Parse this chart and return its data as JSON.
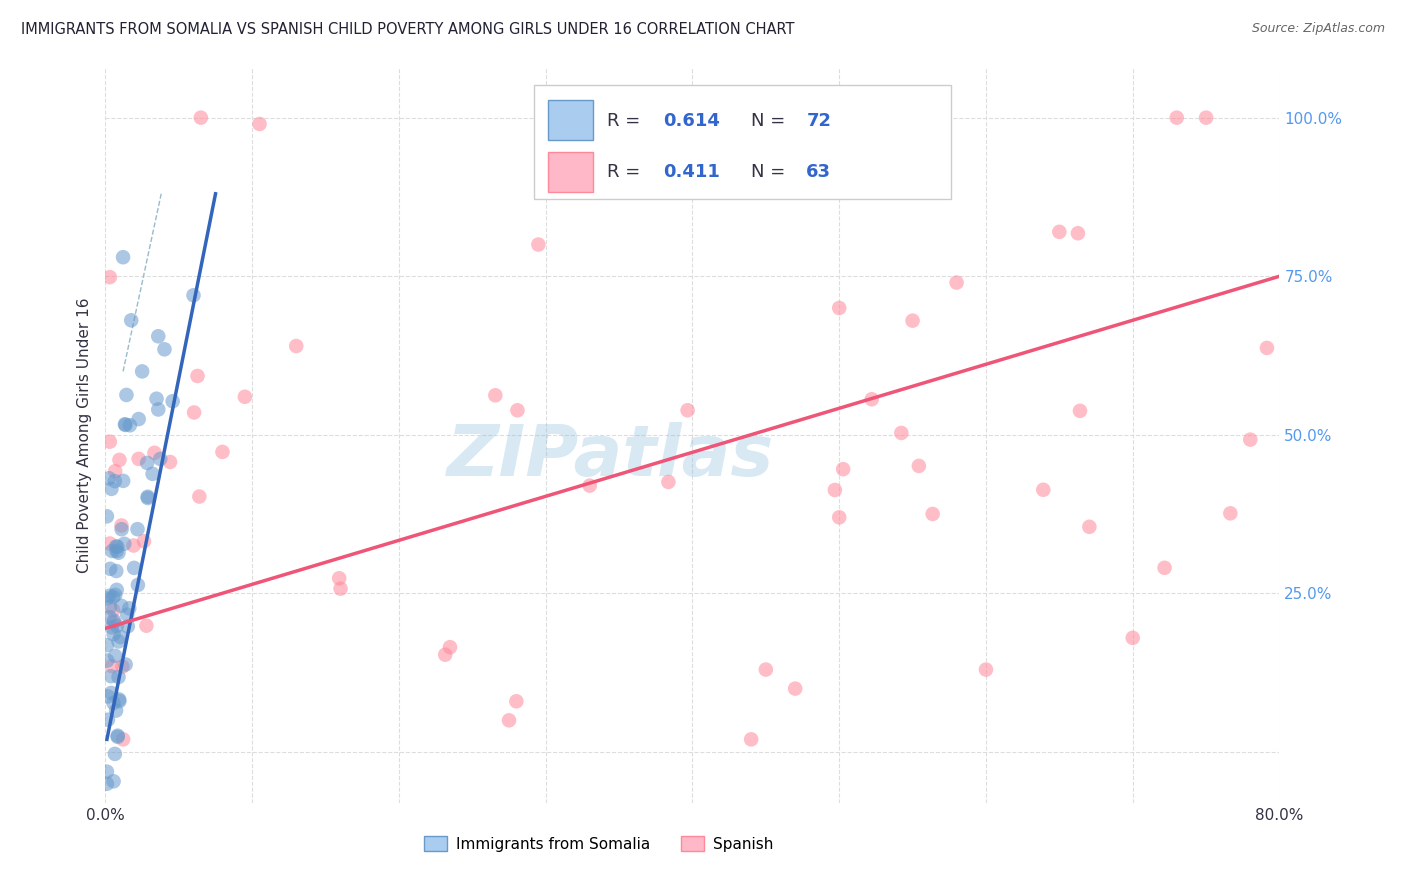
{
  "title": "IMMIGRANTS FROM SOMALIA VS SPANISH CHILD POVERTY AMONG GIRLS UNDER 16 CORRELATION CHART",
  "source": "Source: ZipAtlas.com",
  "ylabel": "Child Poverty Among Girls Under 16",
  "xlim": [
    0,
    0.8
  ],
  "ylim": [
    -0.08,
    1.08
  ],
  "x_ticks": [
    0.0,
    0.1,
    0.2,
    0.3,
    0.4,
    0.5,
    0.6,
    0.7,
    0.8
  ],
  "x_tick_labels": [
    "0.0%",
    "",
    "",
    "",
    "",
    "",
    "",
    "",
    "80.0%"
  ],
  "y_ticks": [
    0.0,
    0.25,
    0.5,
    0.75,
    1.0
  ],
  "y_right_labels": [
    "",
    "25.0%",
    "50.0%",
    "75.0%",
    "100.0%"
  ],
  "legend_r1": "0.614",
  "legend_n1": "72",
  "legend_r2": "0.411",
  "legend_n2": "63",
  "legend_label1": "Immigrants from Somalia",
  "legend_label2": "Spanish",
  "color_somalia": "#6699CC",
  "color_spanish": "#FF8899",
  "color_somalia_fill": "#AACCEE",
  "color_spanish_fill": "#FFB8C8",
  "color_somalia_line": "#3366BB",
  "color_spanish_line": "#EE5577",
  "color_dash": "#99BBCC",
  "watermark_text": "ZIPatlas",
  "watermark_color": "#88BBDD",
  "background_color": "#FFFFFF",
  "grid_color": "#DDDDDD",
  "text_color_dark": "#333344",
  "text_color_blue": "#3366CC",
  "right_label_color": "#5599EE",
  "somalia_line_x0": 0.001,
  "somalia_line_y0": 0.02,
  "somalia_line_x1": 0.075,
  "somalia_line_y1": 0.88,
  "spanish_line_x0": 0.0,
  "spanish_line_y0": 0.195,
  "spanish_line_x1": 0.8,
  "spanish_line_y1": 0.75,
  "dash_line_x0": 0.012,
  "dash_line_y0": 0.6,
  "dash_line_x1": 0.038,
  "dash_line_y1": 0.88
}
